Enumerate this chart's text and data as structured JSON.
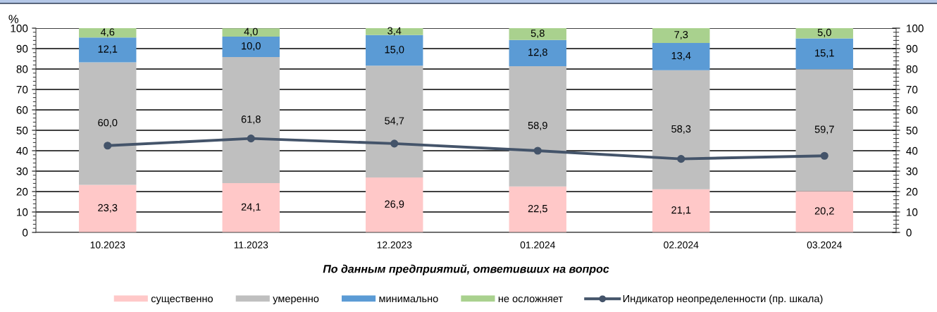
{
  "chart_data": {
    "type": "bar",
    "stacked": true,
    "categories": [
      "10.2023",
      "11.2023",
      "12.2023",
      "01.2024",
      "02.2024",
      "03.2024"
    ],
    "xlabel": "По данным предприятий, ответивших на вопрос",
    "ylabel": "%",
    "ylim": [
      0,
      100
    ],
    "yticks": [
      0,
      10,
      20,
      30,
      40,
      50,
      60,
      70,
      80,
      90,
      100
    ],
    "y2lim": [
      0,
      100
    ],
    "y2ticks": [
      0,
      10,
      20,
      30,
      40,
      50,
      60,
      70,
      80,
      90,
      100
    ],
    "grid": "y",
    "legend": "bottom",
    "marker": "circle",
    "line_style": "solid",
    "series": [
      {
        "name": "существенно",
        "color": "#ffc8c8",
        "values": [
          23.3,
          24.1,
          26.9,
          22.5,
          21.1,
          20.2
        ],
        "value_labels": [
          "23,3",
          "24,1",
          "26,9",
          "22,5",
          "21,1",
          "20,2"
        ]
      },
      {
        "name": "умеренно",
        "color": "#bfbfbf",
        "values": [
          60.0,
          61.8,
          54.7,
          58.9,
          58.3,
          59.7
        ],
        "value_labels": [
          "60,0",
          "61,8",
          "54,7",
          "58,9",
          "58,3",
          "59,7"
        ]
      },
      {
        "name": "минимально",
        "color": "#5b9bd5",
        "values": [
          12.1,
          10.0,
          15.0,
          12.8,
          13.4,
          15.1
        ],
        "value_labels": [
          "12,1",
          "10,0",
          "15,0",
          "12,8",
          "13,4",
          "15,1"
        ]
      },
      {
        "name": "не осложняет",
        "color": "#a9d18e",
        "values": [
          4.6,
          4.0,
          3.4,
          5.8,
          7.3,
          5.0
        ],
        "value_labels": [
          "4,6",
          "4,0",
          "3,4",
          "5,8",
          "7,3",
          "5,0"
        ]
      },
      {
        "name": "Индикатор неопределенности (пр. шкала)",
        "type": "line",
        "axis": "y2",
        "color": "#44546a",
        "values": [
          42.5,
          46.0,
          43.5,
          40.0,
          36.0,
          37.5
        ]
      }
    ]
  }
}
